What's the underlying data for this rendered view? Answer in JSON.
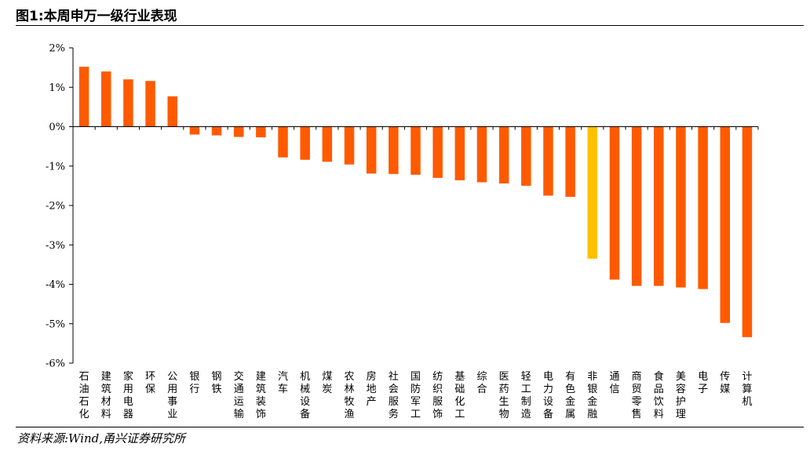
{
  "header": {
    "title": "图1:本周申万一级行业表现"
  },
  "footer": {
    "source": "资料来源:Wind,甬兴证券研究所"
  },
  "colors": {
    "bar": "#ff5a00",
    "highlight": "#ffc000",
    "axis": "#000000"
  },
  "chart_data": {
    "type": "bar",
    "title": "",
    "xlabel": "",
    "ylabel": "",
    "ylim": [
      -6,
      2
    ],
    "yticks": [
      2,
      1,
      0,
      -1,
      -2,
      -3,
      -4,
      -5,
      -6
    ],
    "ytick_labels": [
      "2%",
      "1%",
      "0%",
      "-1%",
      "-2%",
      "-3%",
      "-4%",
      "-5%",
      "-6%"
    ],
    "grid": false,
    "categories": [
      "石油石化",
      "建筑材料",
      "家用电器",
      "环保",
      "公用事业",
      "银行",
      "钢铁",
      "交通运输",
      "建筑装饰",
      "汽车",
      "机械设备",
      "煤炭",
      "农林牧渔",
      "房地产",
      "社会服务",
      "国防军工",
      "纺织服饰",
      "基础化工",
      "综合",
      "医药生物",
      "轻工制造",
      "电力设备",
      "有色金属",
      "非银金融",
      "通信",
      "商贸零售",
      "食品饮料",
      "美容护理",
      "电子",
      "传媒",
      "计算机"
    ],
    "values": [
      1.52,
      1.4,
      1.2,
      1.16,
      0.77,
      -0.2,
      -0.22,
      -0.26,
      -0.27,
      -0.78,
      -0.84,
      -0.89,
      -0.96,
      -1.19,
      -1.2,
      -1.22,
      -1.3,
      -1.36,
      -1.41,
      -1.44,
      -1.5,
      -1.75,
      -1.78,
      -3.35,
      -3.88,
      -4.04,
      -4.04,
      -4.08,
      -4.12,
      -4.98,
      -5.34
    ],
    "highlight_category": "非银金融"
  }
}
